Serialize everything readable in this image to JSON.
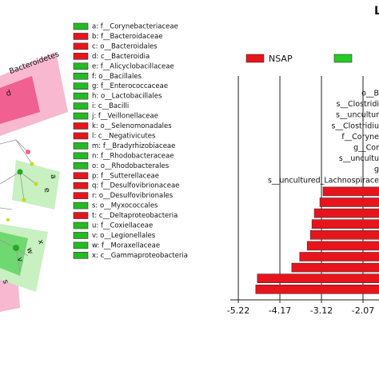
{
  "chart_data": {
    "type": "barh",
    "title": "L",
    "categories": [
      "o__B",
      "s__Clostridi",
      "s__uncultur",
      "s__Clostridiu",
      "f__Coryne",
      "g__Cor",
      "s__uncultu",
      "g",
      "s__uncultured_Lachnospirace",
      null,
      null,
      null,
      null,
      null,
      null,
      null,
      null,
      null,
      null
    ],
    "series": [
      {
        "name": "NSAP",
        "color": "#e8141c",
        "values": [
          null,
          null,
          null,
          null,
          null,
          null,
          null,
          null,
          null,
          -3.08,
          -3.16,
          -3.3,
          -3.36,
          -3.4,
          -3.48,
          -3.67,
          -3.87,
          -4.74,
          -4.78
        ]
      },
      {
        "name": null,
        "color": "#22cc22",
        "values": [
          null,
          null,
          null,
          null,
          null,
          null,
          null,
          null,
          null,
          null,
          null,
          null,
          null,
          null,
          null,
          null,
          null,
          null,
          null
        ]
      }
    ],
    "xticks": [
      -5.22,
      -4.17,
      -3.12,
      -2.07
    ],
    "grid": true
  },
  "taxa_legend": [
    {
      "text": "a: f__Corynebacteriaceae",
      "color": "#22bb22"
    },
    {
      "text": "b: f__Bacteroidaceae",
      "color": "#e8141c"
    },
    {
      "text": "c: o__Bacteroidales",
      "color": "#e8141c"
    },
    {
      "text": "d: c__Bacteroidia",
      "color": "#e8141c"
    },
    {
      "text": "e: f__Alicyclobacillaceae",
      "color": "#22bb22"
    },
    {
      "text": "f: o__Bacillales",
      "color": "#22bb22"
    },
    {
      "text": "g: f__Enterococcaceae",
      "color": "#22bb22"
    },
    {
      "text": "h: o__Lactobacillales",
      "color": "#22bb22"
    },
    {
      "text": "i: c__Bacilli",
      "color": "#22bb22"
    },
    {
      "text": "j: f__Veillonellaceae",
      "color": "#22bb22"
    },
    {
      "text": "k: o__Selenomonadales",
      "color": "#e8141c"
    },
    {
      "text": "l: c__Negativicutes",
      "color": "#e8141c"
    },
    {
      "text": "m: f__Bradyrhizobiaceae",
      "color": "#22bb22"
    },
    {
      "text": "n: f__Rhodobacteraceae",
      "color": "#22bb22"
    },
    {
      "text": "o: o__Rhodobacterales",
      "color": "#22bb22"
    },
    {
      "text": "p: f__Sutterellaceae",
      "color": "#e8141c"
    },
    {
      "text": "q: f__Desulfovibrionaceae",
      "color": "#e8141c"
    },
    {
      "text": "r: o__Desulfovibrionales",
      "color": "#e8141c"
    },
    {
      "text": "s: o__Myxococcales",
      "color": "#22bb22"
    },
    {
      "text": "t: c__Deltaproteobacteria",
      "color": "#e8141c"
    },
    {
      "text": "u: f__Coxiellaceae",
      "color": "#22bb22"
    },
    {
      "text": "v: o__Legionellales",
      "color": "#22bb22"
    },
    {
      "text": "w: f__Moraxellaceae",
      "color": "#22bb22"
    },
    {
      "text": "x: c__Gammaproteobacteria",
      "color": "#22bb22"
    }
  ],
  "cladogram_labels": [
    "Bacteroidetes",
    "d",
    "e",
    "a",
    "x",
    "w",
    "v",
    "s"
  ]
}
